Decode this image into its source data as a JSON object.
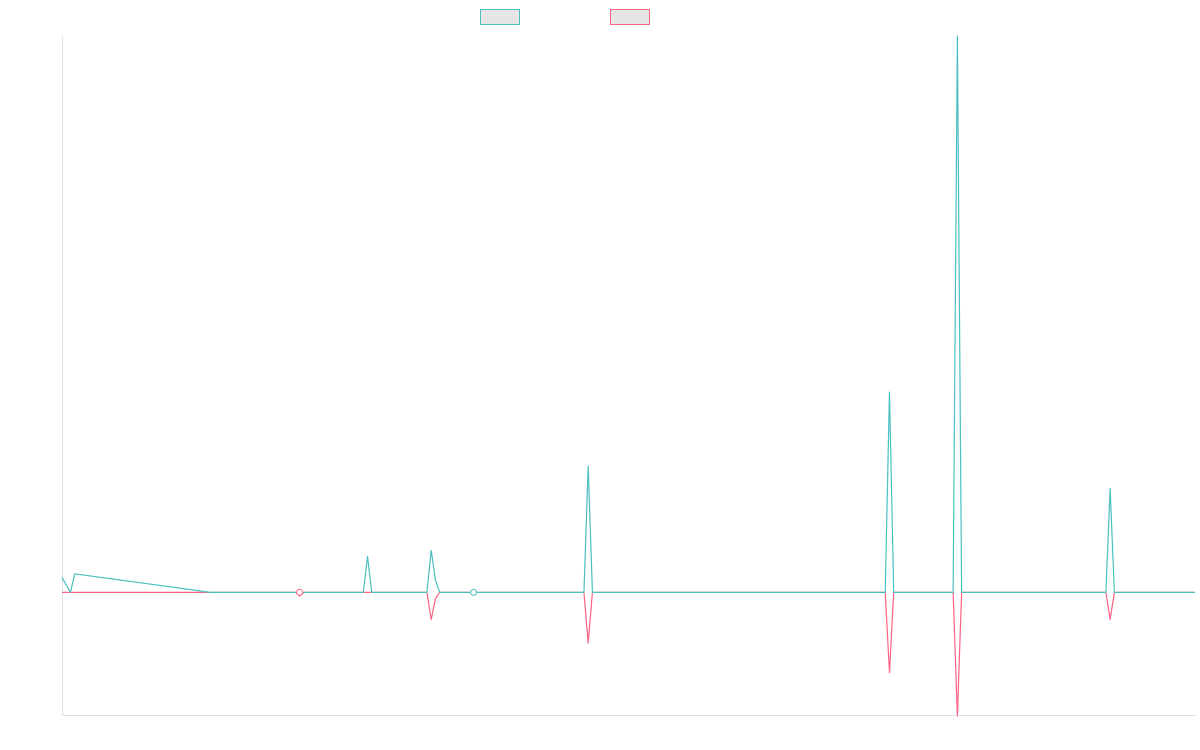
{
  "chart_data": {
    "type": "line",
    "title": "",
    "xlabel": "",
    "ylabel": "",
    "grid": false,
    "legend_position": "top-center",
    "xlim": [
      0,
      267
    ],
    "ylim": [
      -100,
      450
    ],
    "x": [
      0,
      2,
      3,
      35,
      39,
      55,
      56,
      57,
      71,
      72,
      73,
      86,
      87,
      88,
      89,
      91,
      93,
      96,
      97,
      98,
      123,
      124,
      125,
      134,
      139,
      145,
      194,
      195,
      196,
      210,
      211,
      212,
      246,
      247,
      248,
      262,
      263,
      264,
      267
    ],
    "series": [
      {
        "name": "",
        "color": "#4bc0c0",
        "values": [
          12,
          0,
          15,
          0,
          0,
          0,
          0,
          0,
          0,
          29,
          0,
          0,
          34,
          10,
          0,
          0,
          0,
          0,
          0,
          0,
          0,
          102,
          0,
          0,
          0,
          0,
          0,
          162,
          0,
          0,
          450,
          0,
          0,
          84,
          0,
          0,
          0,
          0,
          0
        ]
      },
      {
        "name": "",
        "color": "#ff6384",
        "values": [
          0,
          0,
          0,
          0,
          0,
          0,
          -3,
          0,
          0,
          0,
          0,
          0,
          -22,
          -5,
          0,
          0,
          0,
          0,
          0,
          0,
          0,
          -41,
          0,
          0,
          0,
          0,
          0,
          -65,
          0,
          0,
          -100,
          0,
          0,
          -22,
          0,
          0,
          0,
          0,
          0
        ]
      }
    ],
    "markers": [
      {
        "series": 1,
        "x": 56,
        "y": 0
      },
      {
        "series": 0,
        "x": 97,
        "y": 0
      }
    ]
  }
}
